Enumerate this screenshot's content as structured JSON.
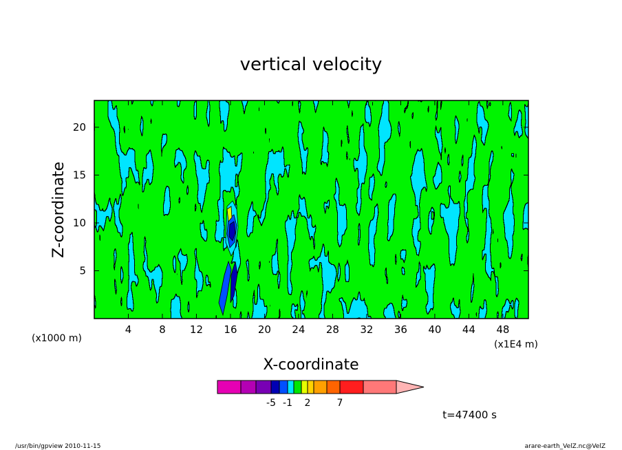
{
  "footer": {
    "left": "/usr/bin/gpview   2010-11-15",
    "right": "arare-earth_VelZ.nc@VelZ"
  },
  "chart_data": {
    "type": "heatmap",
    "title": "vertical velocity",
    "xlabel": "X-coordinate",
    "ylabel": "Z-coordinate",
    "x_unit_left": "(x1000 m)",
    "x_unit_right": "(x1E4 m)",
    "xlim": [
      0,
      51
    ],
    "ylim": [
      0,
      22.8
    ],
    "x_ticks": [
      4,
      8,
      12,
      16,
      20,
      24,
      28,
      32,
      36,
      40,
      44,
      48
    ],
    "x_tick_labels": [
      "4",
      "8",
      "12",
      "16",
      "20",
      "24",
      "28",
      "32",
      "36",
      "40",
      "44",
      "48"
    ],
    "y_ticks": [
      5,
      10,
      15,
      20
    ],
    "y_tick_labels": [
      "5",
      "10",
      "15",
      "20"
    ],
    "time_label": "t=47400 s",
    "field_colors": {
      "negative": "#00e5ff",
      "positive": "#00e600"
    },
    "colorbar": {
      "colors": [
        "#e600b4",
        "#b400b4",
        "#7800b4",
        "#0000b4",
        "#0050ff",
        "#00e5ff",
        "#00e600",
        "#e6ff00",
        "#ffd200",
        "#ffa000",
        "#ff6400",
        "#ff1e1e",
        "#ff7878",
        "#ffb4b4"
      ],
      "widths": [
        34,
        22,
        22,
        12,
        12,
        9,
        11,
        9,
        9,
        19,
        19,
        34,
        48,
        40
      ],
      "tick_labels": [
        {
          "text": "-5",
          "after_segment": 2
        },
        {
          "text": "-1",
          "after_segment": 4
        },
        {
          "text": "2",
          "after_segment": 7
        },
        {
          "text": "7",
          "after_segment": 10
        }
      ]
    }
  }
}
